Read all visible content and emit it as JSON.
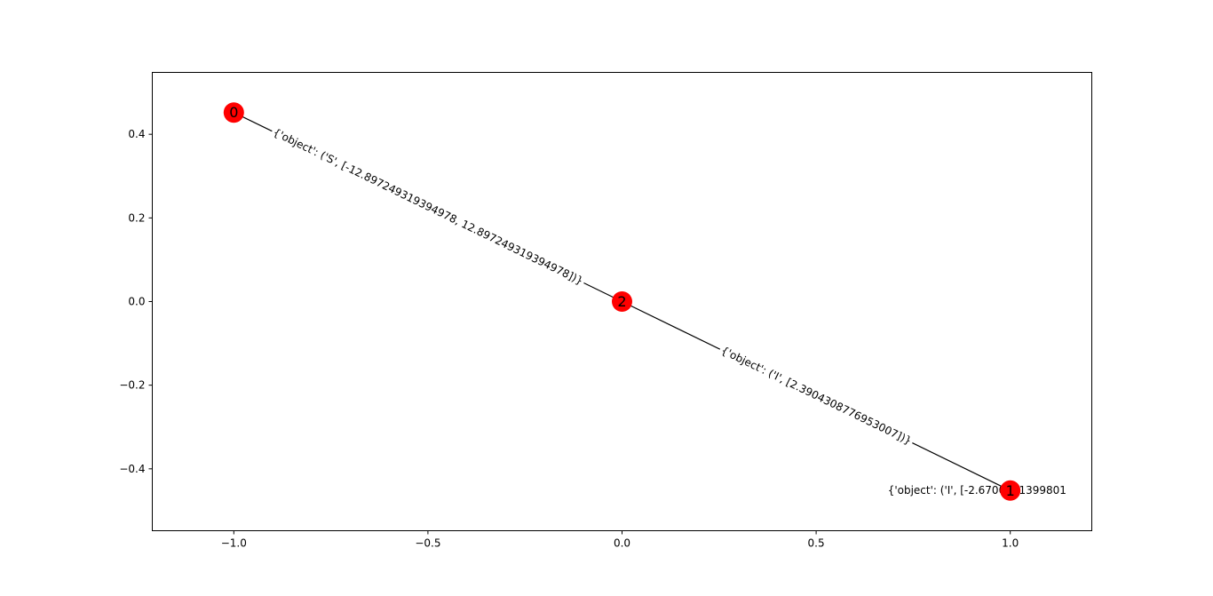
{
  "chart_data": {
    "type": "network graph",
    "xlim": [
      -1.21,
      1.21
    ],
    "ylim": [
      -0.548,
      0.548
    ],
    "xticks": [
      {
        "value": -1.0,
        "label": "−1.0"
      },
      {
        "value": -0.5,
        "label": "−0.5"
      },
      {
        "value": 0.0,
        "label": "0.0"
      },
      {
        "value": 0.5,
        "label": "0.5"
      },
      {
        "value": 1.0,
        "label": "1.0"
      }
    ],
    "yticks": [
      {
        "value": 0.4,
        "label": "0.4"
      },
      {
        "value": 0.2,
        "label": "0.2"
      },
      {
        "value": 0.0,
        "label": "0.0"
      },
      {
        "value": -0.2,
        "label": "−0.2"
      },
      {
        "value": -0.4,
        "label": "−0.4"
      }
    ],
    "grid": false,
    "node_color": "#ff0000",
    "edge_color": "#000000",
    "nodes": [
      {
        "id": "0",
        "label": "0",
        "x": -1.0,
        "y": 0.452
      },
      {
        "id": "1",
        "label": "1",
        "x": 1.0,
        "y": -0.452
      },
      {
        "id": "2",
        "label": "2",
        "x": 0.0,
        "y": 0.0
      }
    ],
    "edges": [
      {
        "source": "0",
        "target": "2",
        "label": "{'object': ('S', [-12.897249319394978, 12.897249319394978])}"
      },
      {
        "source": "2",
        "target": "1",
        "label": "{'object': ('I', [2.3904308776953007])}"
      },
      {
        "source": "1",
        "target": "1",
        "label": "{'object': ('I', [-2.6700821399801"
      }
    ]
  }
}
